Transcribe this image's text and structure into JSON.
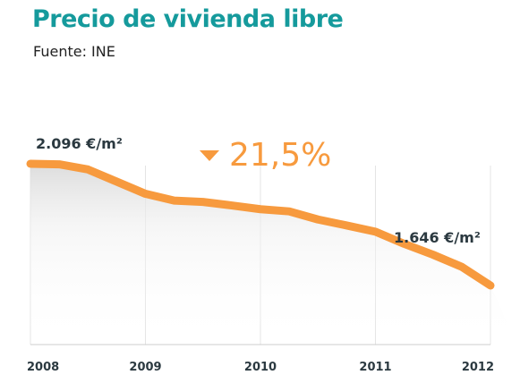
{
  "header": {
    "title": "Precio de vivienda libre",
    "source": "Fuente: INE"
  },
  "annotations": {
    "start_value": "2.096 €/m²",
    "end_value": "1.646 €/m²",
    "change": "21,5%",
    "change_icon": "triangle-down-icon"
  },
  "colors": {
    "title": "#159a9c",
    "line": "#f79a3e",
    "change_text": "#f79a3e",
    "value_text": "#2b3940"
  },
  "chart_data": {
    "type": "line",
    "title": "Precio de vivienda libre",
    "xlabel": "",
    "ylabel": "",
    "x_ticks": [
      "2008",
      "2009",
      "2010",
      "2011",
      "2012"
    ],
    "x": [
      2008.0,
      2008.25,
      2008.5,
      2008.75,
      2009.0,
      2009.25,
      2009.5,
      2009.75,
      2010.0,
      2010.25,
      2010.5,
      2010.75,
      2011.0,
      2011.25,
      2011.5,
      2011.75,
      2012.0
    ],
    "values": [
      2096,
      2094,
      2075,
      2030,
      1985,
      1960,
      1955,
      1942,
      1928,
      1920,
      1890,
      1868,
      1845,
      1800,
      1760,
      1715,
      1646
    ],
    "ylim": [
      1400,
      2150
    ],
    "xlim": [
      2008,
      2012
    ],
    "grid": "vertical",
    "legend": "none"
  }
}
